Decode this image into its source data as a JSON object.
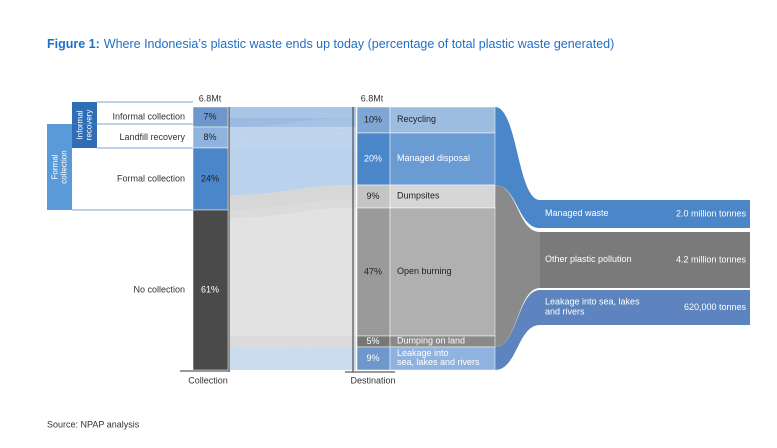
{
  "title": {
    "label": "Figure 1:",
    "text": "Where Indonesia’s plastic waste ends up today (percentage of total plastic waste generated)"
  },
  "groups": [
    {
      "lines": [
        "Informal",
        "recovery"
      ]
    },
    {
      "lines": [
        "Formal",
        "collection"
      ]
    }
  ],
  "collection": {
    "total": "6.8Mt",
    "axis": "Collection",
    "nodes": [
      {
        "label": "Informal collection",
        "percent": "7%"
      },
      {
        "label": "Landfill recovery",
        "percent": "8%"
      },
      {
        "label": "Formal collection",
        "percent": "24%"
      },
      {
        "label": "No collection",
        "percent": "61%"
      }
    ]
  },
  "destination": {
    "total": "6.8Mt",
    "axis": "Destination",
    "nodes": [
      {
        "lines": [
          "Recycling"
        ],
        "percent": "10%"
      },
      {
        "lines": [
          "Managed disposal"
        ],
        "percent": "20%"
      },
      {
        "lines": [
          "Dumpsites"
        ],
        "percent": "9%"
      },
      {
        "lines": [
          "Open burning"
        ],
        "percent": "47%"
      },
      {
        "lines": [
          "Dumping on land"
        ],
        "percent": "5%"
      },
      {
        "lines": [
          "Leakage into",
          "sea, lakes and rivers"
        ],
        "percent": "9%"
      }
    ]
  },
  "outcomes": [
    {
      "lines": [
        "Managed waste"
      ],
      "amount": "2.0 million tonnes"
    },
    {
      "lines": [
        "Other plastic pollution"
      ],
      "amount": "4.2 million tonnes"
    },
    {
      "lines": [
        "Leakage into sea, lakes",
        "and rivers"
      ],
      "amount": "620,000 tonnes"
    }
  ],
  "source": "Source: NPAP analysis"
}
